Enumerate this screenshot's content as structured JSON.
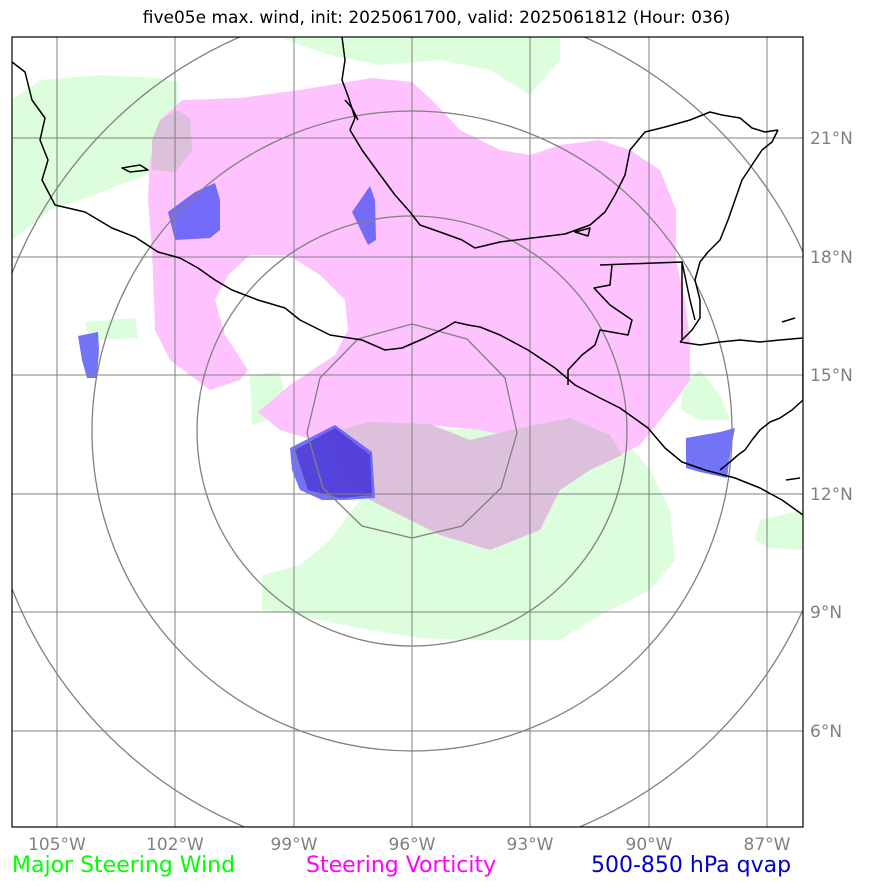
{
  "title": "five05e max. wind, init: 2025061700, valid: 2025061812 (Hour: 036)",
  "lon_labels": [
    "105°W",
    "102°W",
    "99°W",
    "96°W",
    "93°W",
    "90°W",
    "87°W"
  ],
  "lat_labels": [
    "21°N",
    "18°N",
    "15°N",
    "12°N",
    "9°N",
    "6°N"
  ],
  "legend": {
    "wind": "Major Steering Wind",
    "vorticity": "Steering Vorticity",
    "qvap": "500-850 hPa qvap"
  },
  "colors": {
    "wind": "#00ff00",
    "vorticity": "#ff00ff",
    "qvap": "#0000cc",
    "wind_fill": "#dcfedc",
    "vorticity_fill": "#fec0fe",
    "qvap_fill": "#6a6af8",
    "grid": "#808080",
    "coast": "#000000"
  }
}
